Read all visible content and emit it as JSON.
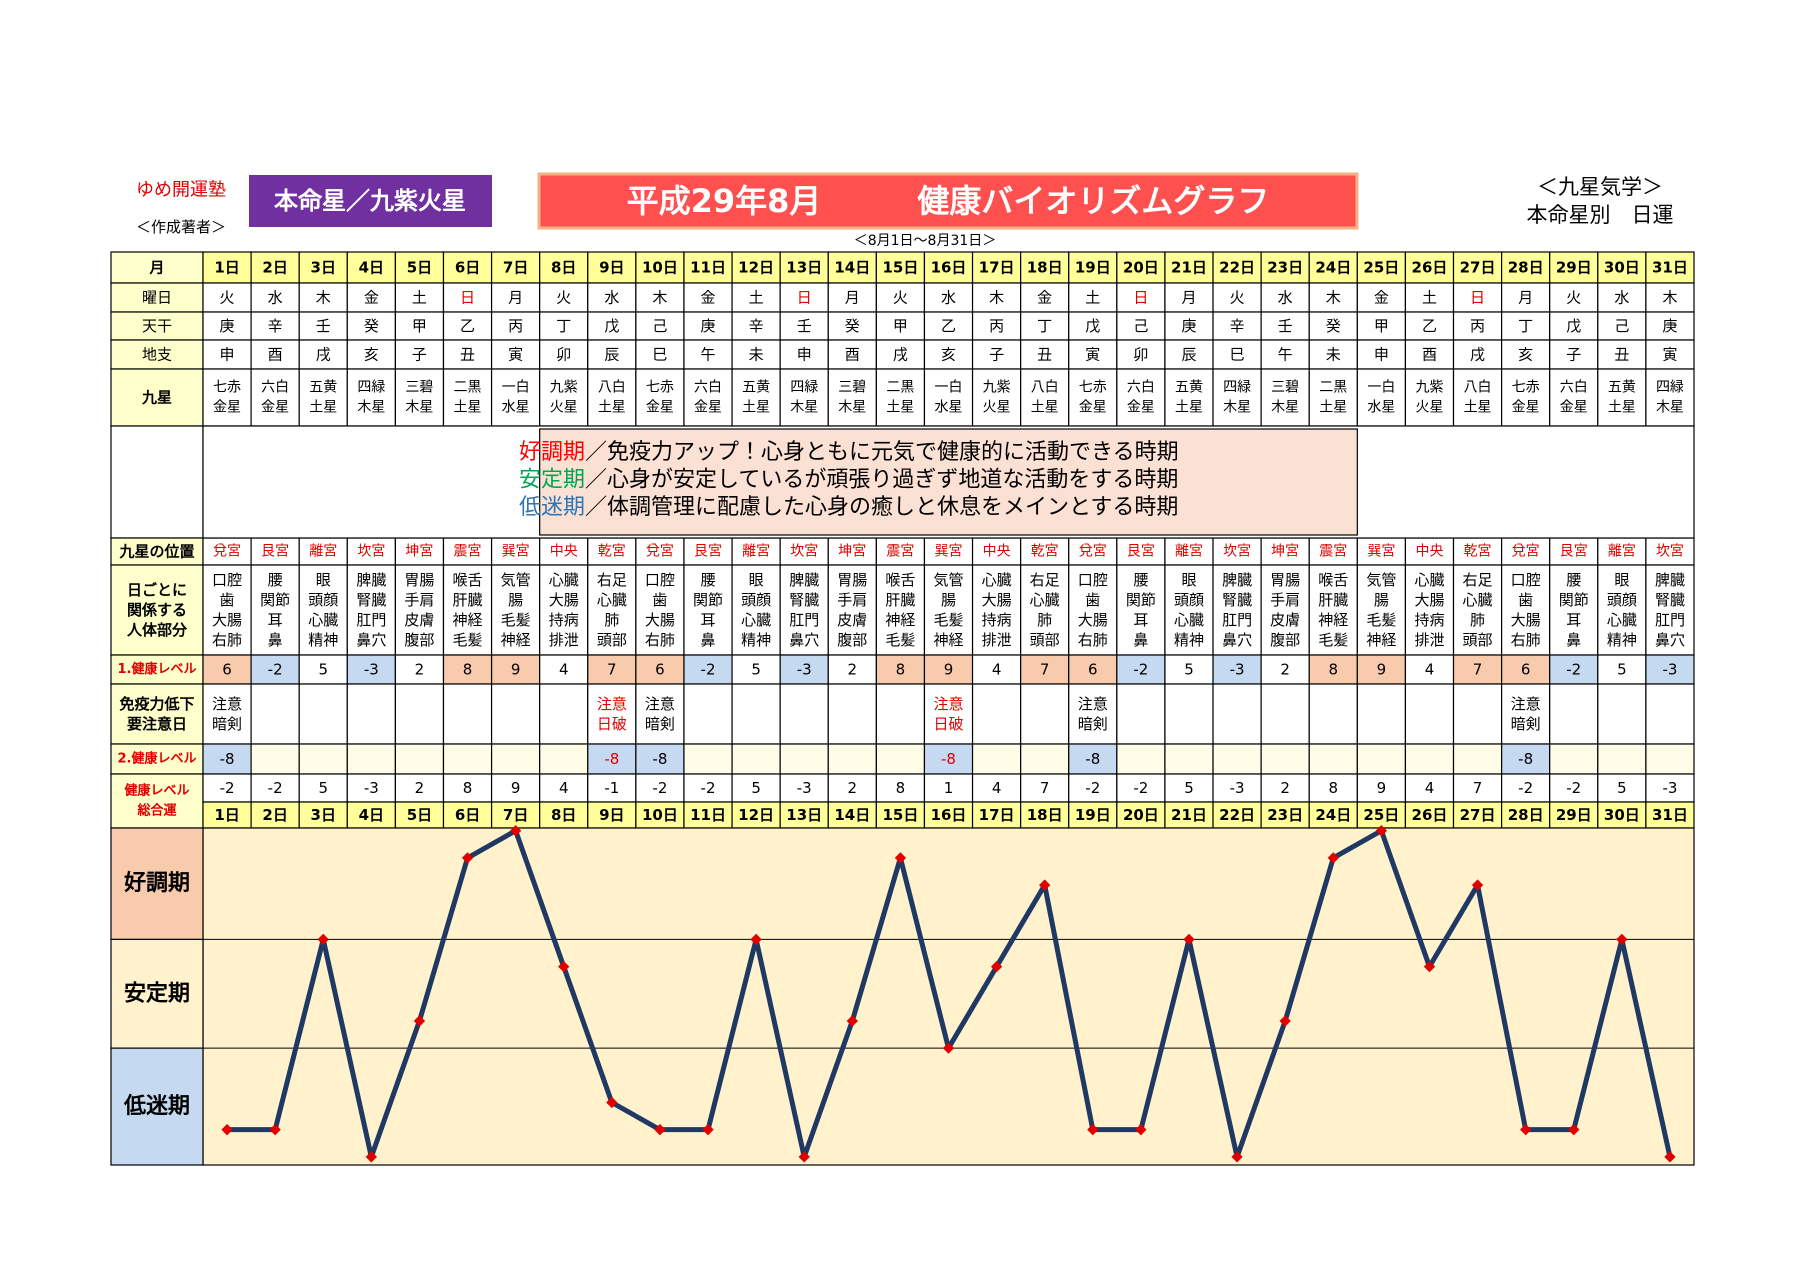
{
  "header": {
    "school": "ゆめ開運塾",
    "author": "＜作成著者＞",
    "star": "本命星／九紫火星",
    "title": "平成29年8月　　　健康バイオリズムグラフ",
    "right_top": "＜九星気学＞",
    "right_bottom": "本命星別　日運",
    "range": "＜8月1日～8月31日＞"
  },
  "table": {
    "labels": {
      "day": "月",
      "weekday": "曜日",
      "stem": "天干",
      "branch": "地支",
      "star": "九星",
      "palace": "九星の位置",
      "body": [
        "日ごとに",
        "関係する",
        "人体部分"
      ],
      "level1": "1.健康レベル",
      "immunity": [
        "免疫力低下",
        "要注意日"
      ],
      "level2": "2.健康レベル",
      "total": [
        "健康レベル",
        "総合運"
      ]
    },
    "days": [
      "1日",
      "2日",
      "3日",
      "4日",
      "5日",
      "6日",
      "7日",
      "8日",
      "9日",
      "10日",
      "11日",
      "12日",
      "13日",
      "14日",
      "15日",
      "16日",
      "17日",
      "18日",
      "19日",
      "20日",
      "21日",
      "22日",
      "23日",
      "24日",
      "25日",
      "26日",
      "27日",
      "28日",
      "29日",
      "30日",
      "31日"
    ],
    "weekdays": [
      "火",
      "水",
      "木",
      "金",
      "土",
      "日",
      "月",
      "火",
      "水",
      "木",
      "金",
      "土",
      "日",
      "月",
      "火",
      "水",
      "木",
      "金",
      "土",
      "日",
      "月",
      "火",
      "水",
      "木",
      "金",
      "土",
      "日",
      "月",
      "火",
      "水",
      "木"
    ],
    "stems": [
      "庚",
      "辛",
      "壬",
      "癸",
      "甲",
      "乙",
      "丙",
      "丁",
      "戊",
      "己",
      "庚",
      "辛",
      "壬",
      "癸",
      "甲",
      "乙",
      "丙",
      "丁",
      "戊",
      "己",
      "庚",
      "辛",
      "壬",
      "癸",
      "甲",
      "乙",
      "丙",
      "丁",
      "戊",
      "己",
      "庚"
    ],
    "branches": [
      "申",
      "酉",
      "戌",
      "亥",
      "子",
      "丑",
      "寅",
      "卯",
      "辰",
      "巳",
      "午",
      "未",
      "申",
      "酉",
      "戌",
      "亥",
      "子",
      "丑",
      "寅",
      "卯",
      "辰",
      "巳",
      "午",
      "未",
      "申",
      "酉",
      "戌",
      "亥",
      "子",
      "丑",
      "寅"
    ],
    "stars": [
      [
        "七赤",
        "金星"
      ],
      [
        "六白",
        "金星"
      ],
      [
        "五黄",
        "土星"
      ],
      [
        "四緑",
        "木星"
      ],
      [
        "三碧",
        "木星"
      ],
      [
        "二黒",
        "土星"
      ],
      [
        "一白",
        "水星"
      ],
      [
        "九紫",
        "火星"
      ],
      [
        "八白",
        "土星"
      ],
      [
        "七赤",
        "金星"
      ],
      [
        "六白",
        "金星"
      ],
      [
        "五黄",
        "土星"
      ],
      [
        "四緑",
        "木星"
      ],
      [
        "三碧",
        "木星"
      ],
      [
        "二黒",
        "土星"
      ],
      [
        "一白",
        "水星"
      ],
      [
        "九紫",
        "火星"
      ],
      [
        "八白",
        "土星"
      ],
      [
        "七赤",
        "金星"
      ],
      [
        "六白",
        "金星"
      ],
      [
        "五黄",
        "土星"
      ],
      [
        "四緑",
        "木星"
      ],
      [
        "三碧",
        "木星"
      ],
      [
        "二黒",
        "土星"
      ],
      [
        "一白",
        "水星"
      ],
      [
        "九紫",
        "火星"
      ],
      [
        "八白",
        "土星"
      ],
      [
        "七赤",
        "金星"
      ],
      [
        "六白",
        "金星"
      ],
      [
        "五黄",
        "土星"
      ],
      [
        "四緑",
        "木星"
      ]
    ],
    "palaces": [
      "兌宮",
      "艮宮",
      "離宮",
      "坎宮",
      "坤宮",
      "震宮",
      "巽宮",
      "中央",
      "乾宮",
      "兌宮",
      "艮宮",
      "離宮",
      "坎宮",
      "坤宮",
      "震宮",
      "巽宮",
      "中央",
      "乾宮",
      "兌宮",
      "艮宮",
      "離宮",
      "坎宮",
      "坤宮",
      "震宮",
      "巽宮",
      "中央",
      "乾宮",
      "兌宮",
      "艮宮",
      "離宮",
      "坎宮"
    ],
    "body_parts": [
      [
        "口腔",
        "歯",
        "大腸",
        "右肺"
      ],
      [
        "腰",
        "関節",
        "耳",
        "鼻"
      ],
      [
        "眼",
        "頭顔",
        "心臓",
        "精神"
      ],
      [
        "脾臓",
        "腎臓",
        "肛門",
        "鼻穴"
      ],
      [
        "胃腸",
        "手肩",
        "皮膚",
        "腹部"
      ],
      [
        "喉舌",
        "肝臓",
        "神経",
        "毛髪"
      ],
      [
        "気管",
        "腸",
        "毛髪",
        "神経"
      ],
      [
        "心臓",
        "大腸",
        "持病",
        "排泄"
      ],
      [
        "右足",
        "心臓",
        "肺",
        "頭部"
      ],
      [
        "口腔",
        "歯",
        "大腸",
        "右肺"
      ],
      [
        "腰",
        "関節",
        "耳",
        "鼻"
      ],
      [
        "眼",
        "頭顔",
        "心臓",
        "精神"
      ],
      [
        "脾臓",
        "腎臓",
        "肛門",
        "鼻穴"
      ],
      [
        "胃腸",
        "手肩",
        "皮膚",
        "腹部"
      ],
      [
        "喉舌",
        "肝臓",
        "神経",
        "毛髪"
      ],
      [
        "気管",
        "腸",
        "毛髪",
        "神経"
      ],
      [
        "心臓",
        "大腸",
        "持病",
        "排泄"
      ],
      [
        "右足",
        "心臓",
        "肺",
        "頭部"
      ],
      [
        "口腔",
        "歯",
        "大腸",
        "右肺"
      ],
      [
        "腰",
        "関節",
        "耳",
        "鼻"
      ],
      [
        "眼",
        "頭顔",
        "心臓",
        "精神"
      ],
      [
        "脾臓",
        "腎臓",
        "肛門",
        "鼻穴"
      ],
      [
        "胃腸",
        "手肩",
        "皮膚",
        "腹部"
      ],
      [
        "喉舌",
        "肝臓",
        "神経",
        "毛髪"
      ],
      [
        "気管",
        "腸",
        "毛髪",
        "神経"
      ],
      [
        "心臓",
        "大腸",
        "持病",
        "排泄"
      ],
      [
        "右足",
        "心臓",
        "肺",
        "頭部"
      ],
      [
        "口腔",
        "歯",
        "大腸",
        "右肺"
      ],
      [
        "腰",
        "関節",
        "耳",
        "鼻"
      ],
      [
        "眼",
        "頭顔",
        "心臓",
        "精神"
      ],
      [
        "脾臓",
        "腎臓",
        "肛門",
        "鼻穴"
      ]
    ],
    "level1": [
      6,
      -2,
      5,
      -3,
      2,
      8,
      9,
      4,
      7,
      6,
      -2,
      5,
      -3,
      2,
      8,
      9,
      4,
      7,
      6,
      -2,
      5,
      -3,
      2,
      8,
      9,
      4,
      7,
      6,
      -2,
      5,
      -3
    ],
    "immunity": [
      [
        "注意",
        "暗剣"
      ],
      null,
      null,
      null,
      null,
      null,
      null,
      null,
      [
        "注意",
        "日破"
      ],
      [
        "注意",
        "暗剣"
      ],
      null,
      null,
      null,
      null,
      null,
      [
        "注意",
        "日破"
      ],
      null,
      null,
      [
        "注意",
        "暗剣"
      ],
      null,
      null,
      null,
      null,
      null,
      null,
      null,
      null,
      [
        "注意",
        "暗剣"
      ],
      null,
      null,
      null
    ],
    "level2": [
      -8,
      null,
      null,
      null,
      null,
      null,
      null,
      null,
      -8,
      -8,
      null,
      null,
      null,
      null,
      null,
      -8,
      null,
      null,
      -8,
      null,
      null,
      null,
      null,
      null,
      null,
      null,
      null,
      -8,
      null,
      null,
      null
    ],
    "level_colors": {
      "high": "#f8cbad",
      "low": "#c5d9f1"
    }
  },
  "legend": [
    {
      "term": "好調期",
      "text": "／免疫力アップ！心身ともに元気で健康的に活動できる時期",
      "color": "#ff0000"
    },
    {
      "term": "安定期",
      "text": "／心身が安定しているが頑張り過ぎず地道な活動をする時期",
      "color": "#00a651"
    },
    {
      "term": "低迷期",
      "text": "／体調管理に配慮した心身の癒しと休息をメインとする時期",
      "color": "#2e75b6"
    }
  ],
  "chart_data": {
    "type": "line",
    "categories": [
      "1日",
      "2日",
      "3日",
      "4日",
      "5日",
      "6日",
      "7日",
      "8日",
      "9日",
      "10日",
      "11日",
      "12日",
      "13日",
      "14日",
      "15日",
      "16日",
      "17日",
      "18日",
      "19日",
      "20日",
      "21日",
      "22日",
      "23日",
      "24日",
      "25日",
      "26日",
      "27日",
      "28日",
      "29日",
      "30日",
      "31日"
    ],
    "values": [
      -2,
      -2,
      5,
      -3,
      2,
      8,
      9,
      4,
      -1,
      -2,
      -2,
      5,
      -3,
      2,
      8,
      1,
      4,
      7,
      -2,
      -2,
      5,
      -3,
      2,
      8,
      9,
      4,
      7,
      -2,
      -2,
      5,
      -3
    ],
    "color": "#1f3864",
    "marker_color": "#e00000",
    "ylim": [
      -3.3,
      9.1
    ],
    "bands": [
      {
        "label": "好調期",
        "from": 5,
        "to": 9.1,
        "color": "#f8cbad"
      },
      {
        "label": "安定期",
        "from": 1,
        "to": 5,
        "color": "#fff2cc"
      },
      {
        "label": "低迷期",
        "from": -3.3,
        "to": 1,
        "color": "#c5d9f1"
      }
    ]
  }
}
